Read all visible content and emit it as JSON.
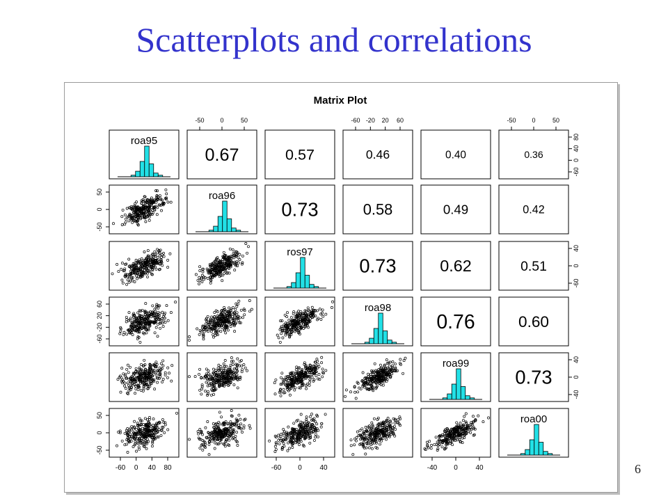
{
  "slide": {
    "title": "Scatterplots and correlations",
    "page_number": "6"
  },
  "chart_data": {
    "type": "scatter",
    "title": "Matrix Plot",
    "variables": [
      "roa95",
      "roa96",
      "ros97",
      "roa98",
      "roa99",
      "roa00"
    ],
    "correlations": [
      [
        "",
        "0.67",
        "0.57",
        "0.46",
        "0.40",
        "0.36"
      ],
      [
        "0.67",
        "",
        "0.73",
        "0.58",
        "0.49",
        "0.42"
      ],
      [
        "0.57",
        "0.73",
        "",
        "0.73",
        "0.62",
        "0.51"
      ],
      [
        "0.46",
        "0.58",
        "0.73",
        "",
        "0.76",
        "0.60"
      ],
      [
        "0.40",
        "0.49",
        "0.62",
        "0.76",
        "",
        "0.73"
      ],
      [
        "0.36",
        "0.42",
        "0.51",
        "0.60",
        "0.73",
        ""
      ]
    ],
    "axes": {
      "top": [
        {
          "col": 1,
          "ticks": [
            "-50",
            "0",
            "50"
          ]
        },
        {
          "col": 3,
          "ticks": [
            "-60",
            "-20",
            "20",
            "60"
          ]
        },
        {
          "col": 5,
          "ticks": [
            "-50",
            "0",
            "50"
          ]
        }
      ],
      "bottom": [
        {
          "col": 0,
          "ticks": [
            "-60",
            "0",
            "40",
            "80"
          ]
        },
        {
          "col": 2,
          "ticks": [
            "-60",
            "0",
            "40"
          ]
        },
        {
          "col": 4,
          "ticks": [
            "-40",
            "0",
            "40"
          ]
        }
      ],
      "left": [
        {
          "row": 1,
          "ticks": [
            "-50",
            "0",
            "50"
          ]
        },
        {
          "row": 3,
          "ticks": [
            "-60",
            "-20",
            "20",
            "60"
          ]
        },
        {
          "row": 5,
          "ticks": [
            "-50",
            "0",
            "50"
          ]
        }
      ],
      "right": [
        {
          "row": 0,
          "ticks": [
            "-60",
            "0",
            "40",
            "80"
          ]
        },
        {
          "row": 2,
          "ticks": [
            "-60",
            "0",
            "40"
          ]
        },
        {
          "row": 4,
          "ticks": [
            "-40",
            "0",
            "40"
          ]
        }
      ]
    },
    "histogram_color": "#22e0e6",
    "point_color": "#000000",
    "grid": false,
    "legend": "none"
  }
}
